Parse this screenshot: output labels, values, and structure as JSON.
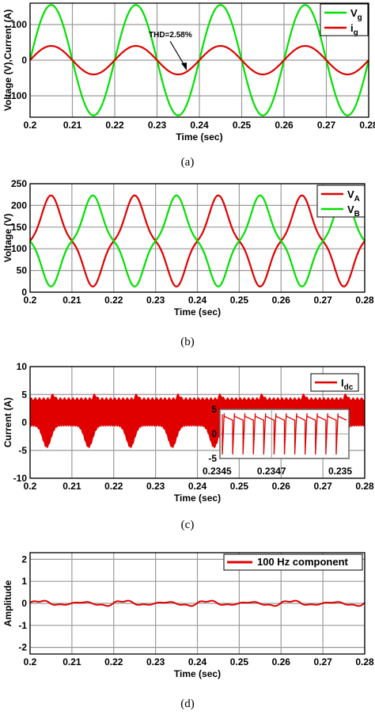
{
  "chart_data": [
    {
      "id": "a",
      "type": "line",
      "caption": "(a)",
      "xlabel": "Time (sec)",
      "ylabel": "Voltage (V),Current (A)",
      "xlim": [
        0.2,
        0.28
      ],
      "ylim": [
        -160,
        160
      ],
      "xticks": [
        0.2,
        0.21,
        0.22,
        0.23,
        0.24,
        0.25,
        0.26,
        0.27,
        0.28
      ],
      "yticks": [
        -100,
        0,
        100
      ],
      "grid": true,
      "legend_position": "top-right",
      "annotation": "THD=2.58%",
      "series": [
        {
          "name": "V",
          "sub": "g",
          "color": "#00e000",
          "model": {
            "amplitude": 155,
            "frequency_hz": 50,
            "phase_deg": 0
          }
        },
        {
          "name": "i",
          "sub": "g",
          "color": "#e00000",
          "model": {
            "amplitude": 40,
            "frequency_hz": 50,
            "phase_deg": 0
          }
        }
      ]
    },
    {
      "id": "b",
      "type": "line",
      "caption": "(b)",
      "xlabel": "Time (sec)",
      "ylabel": "Voltage (V)",
      "xlim": [
        0.2,
        0.28
      ],
      "ylim": [
        0,
        250
      ],
      "xticks": [
        0.2,
        0.21,
        0.22,
        0.23,
        0.24,
        0.25,
        0.26,
        0.27,
        0.28
      ],
      "yticks": [
        0,
        50,
        100,
        150,
        200,
        250
      ],
      "grid": true,
      "legend_position": "top-right",
      "series": [
        {
          "name": "V",
          "sub": "A",
          "color": "#e00000",
          "model": {
            "offset": 118,
            "amplitude": 105,
            "frequency_hz": 50,
            "phase_deg": 0
          }
        },
        {
          "name": "V",
          "sub": "B",
          "color": "#00e000",
          "model": {
            "offset": 118,
            "amplitude": 105,
            "frequency_hz": 50,
            "phase_deg": 180
          }
        }
      ]
    },
    {
      "id": "c",
      "type": "line",
      "caption": "(c)",
      "xlabel": "Time (sec)",
      "ylabel": "Current (A)",
      "xlim": [
        0.2,
        0.28
      ],
      "ylim": [
        -10,
        10
      ],
      "xticks": [
        0.2,
        0.21,
        0.22,
        0.23,
        0.24,
        0.25,
        0.26,
        0.27,
        0.28
      ],
      "yticks": [
        -10,
        -5,
        0,
        5,
        10
      ],
      "grid": true,
      "legend_position": "top-right",
      "series": [
        {
          "name": "I",
          "sub": "dc",
          "color": "#e00000",
          "model": {
            "max_approx": 5,
            "min_approx": -4.2,
            "frequency_hz": 100
          }
        }
      ],
      "inset": {
        "xticks": [
          "0.2345",
          "0.2347",
          "0.235"
        ],
        "yticks": [
          -5,
          0,
          5
        ],
        "ylim": [
          -5,
          5
        ]
      }
    },
    {
      "id": "d",
      "type": "line",
      "caption": "(d)",
      "xlabel": "Time (sec)",
      "ylabel": "Amplitude",
      "xlim": [
        0.2,
        0.28
      ],
      "ylim": [
        -2.3,
        2.3
      ],
      "xticks": [
        0.2,
        0.21,
        0.22,
        0.23,
        0.24,
        0.25,
        0.26,
        0.27,
        0.28
      ],
      "yticks": [
        -2,
        -1,
        0,
        1,
        2
      ],
      "grid": true,
      "legend_position": "top-right",
      "series": [
        {
          "name": "100 Hz component",
          "color": "#e00000",
          "model": {
            "amplitude_approx": 0.12,
            "frequency_hz": 100
          }
        }
      ]
    }
  ]
}
